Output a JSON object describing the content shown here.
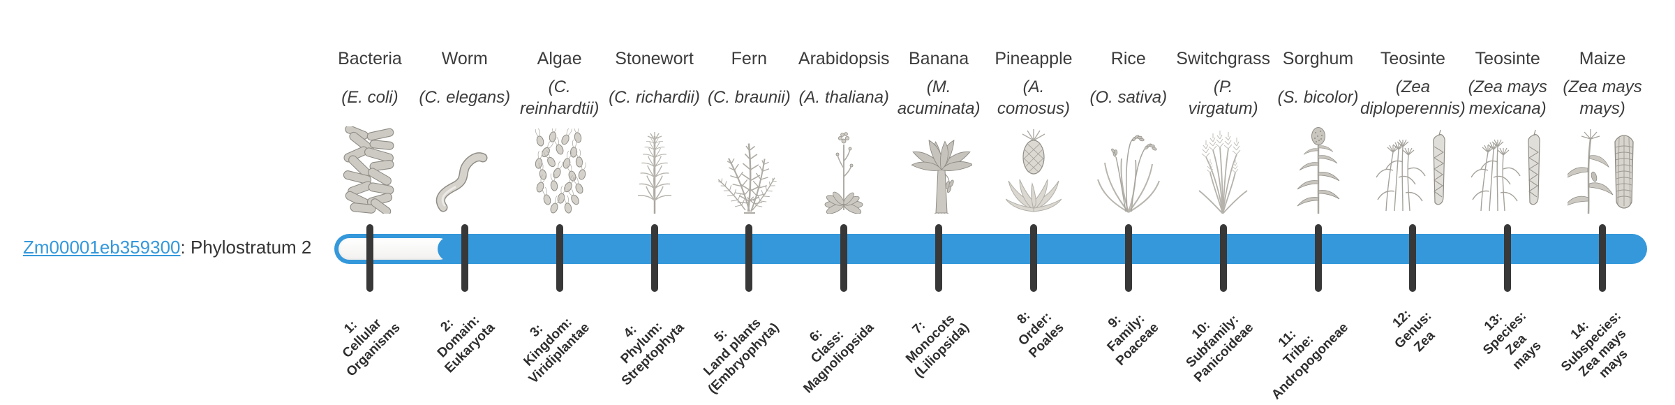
{
  "gene": {
    "id": "Zm00001eb359300",
    "suffix": ": Phylostratum 2",
    "phylostratum": 2
  },
  "colors": {
    "bar_blue": "#3498db",
    "link_blue": "#3498db",
    "tick_dark": "#383838",
    "text_dark": "#3c3c3c"
  },
  "timeline": {
    "strata": [
      {
        "num": 1,
        "organism": "Bacteria",
        "scientific": "(E. coli)",
        "icon": "bacteria-icon",
        "tick_label": "1:\nCellular\nOrganisms"
      },
      {
        "num": 2,
        "organism": "Worm",
        "scientific": "(C. elegans)",
        "icon": "worm-icon",
        "tick_label": "2:\nDomain:\nEukaryota"
      },
      {
        "num": 3,
        "organism": "Algae",
        "scientific": "(C.\nreinhardtii)",
        "icon": "algae-icon",
        "tick_label": "3:\nKingdom:\nViridiplantae"
      },
      {
        "num": 4,
        "organism": "Stonewort",
        "scientific": "(C. richardii)",
        "icon": "stonewort-icon",
        "tick_label": "4:\nPhylum:\nStreptophyta"
      },
      {
        "num": 5,
        "organism": "Fern",
        "scientific": "(C. braunii)",
        "icon": "fern-icon",
        "tick_label": "5:\nLand plants\n(Embryophyta)"
      },
      {
        "num": 6,
        "organism": "Arabidopsis",
        "scientific": "(A. thaliana)",
        "icon": "arabidopsis-icon",
        "tick_label": "6:\nClass:\nMagnoliopsida"
      },
      {
        "num": 7,
        "organism": "Banana",
        "scientific": "(M.\nacuminata)",
        "icon": "banana-icon",
        "tick_label": "7:\nMonocots\n(Liliopsida)"
      },
      {
        "num": 8,
        "organism": "Pineapple",
        "scientific": "(A.\ncomosus)",
        "icon": "pineapple-icon",
        "tick_label": "8:\nOrder:\nPoales"
      },
      {
        "num": 9,
        "organism": "Rice",
        "scientific": "(O. sativa)",
        "icon": "rice-icon",
        "tick_label": "9:\nFamily:\nPoaceae"
      },
      {
        "num": 10,
        "organism": "Switchgrass",
        "scientific": "(P.\nvirgatum)",
        "icon": "switchgrass-icon",
        "tick_label": "10:\nSubfamily:\nPanicoideae"
      },
      {
        "num": 11,
        "organism": "Sorghum",
        "scientific": "(S. bicolor)",
        "icon": "sorghum-icon",
        "tick_label": "11:\nTribe:\nAndropogoneae"
      },
      {
        "num": 12,
        "organism": "Teosinte",
        "scientific": "(Zea\ndiploperennis)",
        "icon": "teosinte-icon",
        "tick_label": "12:\nGenus:\nZea"
      },
      {
        "num": 13,
        "organism": "Teosinte",
        "scientific": "(Zea mays\nmexicana)",
        "icon": "teosinte-icon",
        "tick_label": "13:\nSpecies:\nZea\nmays"
      },
      {
        "num": 14,
        "organism": "Maize",
        "scientific": "(Zea mays\nmays)",
        "icon": "maize-icon",
        "tick_label": "14:\nSubspecies:\nZea mays\nmays"
      }
    ]
  }
}
